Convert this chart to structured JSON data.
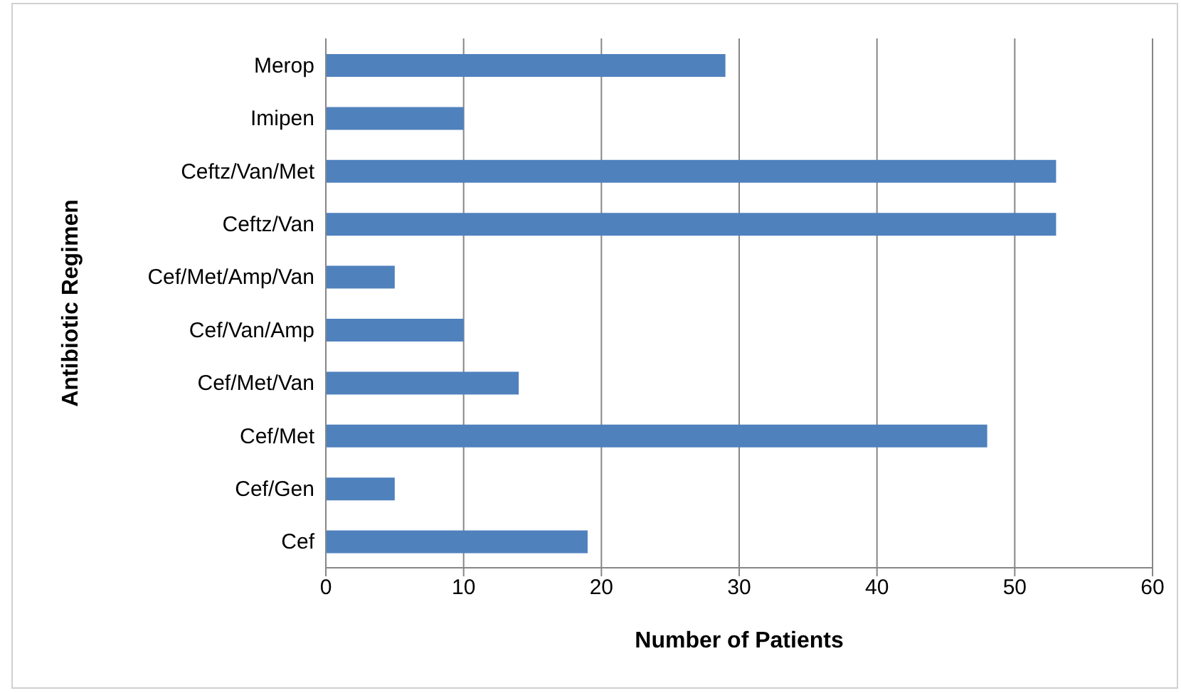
{
  "chart_data": {
    "type": "bar",
    "orientation": "horizontal",
    "xlabel": "Number of Patients",
    "ylabel": "Antibiotic Regimen",
    "categories": [
      "Merop",
      "Imipen",
      "Ceftz/Van/Met",
      "Ceftz/Van",
      "Cef/Met/Amp/Van",
      "Cef/Van/Amp",
      "Cef/Met/Van",
      "Cef/Met",
      "Cef/Gen",
      "Cef"
    ],
    "values": [
      29,
      10,
      53,
      53,
      5,
      10,
      14,
      48,
      5,
      19
    ],
    "color": "#4f81bd",
    "xlim": [
      0,
      60
    ],
    "xticks": [
      0,
      10,
      20,
      30,
      40,
      50,
      60
    ],
    "grid": "x"
  }
}
